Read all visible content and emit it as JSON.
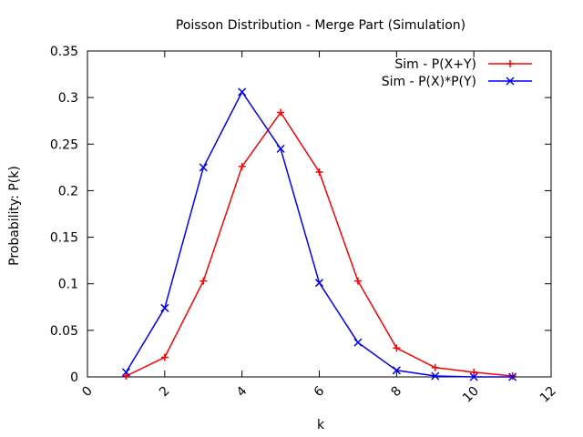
{
  "chart_data": {
    "type": "line",
    "title": "Poisson Distribution - Merge Part (Simulation)",
    "xlabel": "k",
    "ylabel": "Probability: P(k)",
    "xlim": [
      0,
      12
    ],
    "ylim": [
      0,
      0.35
    ],
    "xticks": [
      "0",
      "2",
      "4",
      "6",
      "8",
      "10",
      "12"
    ],
    "yticks": [
      "0",
      "0.05",
      "0.1",
      "0.15",
      "0.2",
      "0.25",
      "0.3",
      "0.35"
    ],
    "grid": false,
    "legend_position": "top-right",
    "series": [
      {
        "name": "Sim - P(X+Y)",
        "color": "#ff0000",
        "marker": "plus",
        "x": [
          1,
          2,
          3,
          4,
          5,
          6,
          7,
          8,
          9,
          10,
          11
        ],
        "y": [
          0.001,
          0.021,
          0.103,
          0.226,
          0.284,
          0.22,
          0.103,
          0.031,
          0.01,
          0.005,
          0.001
        ]
      },
      {
        "name": "Sim - P(X)*P(Y)",
        "color": "#0000ff",
        "marker": "cross",
        "x": [
          1,
          2,
          3,
          4,
          5,
          6,
          7,
          8,
          9,
          10,
          11
        ],
        "y": [
          0.005,
          0.074,
          0.225,
          0.306,
          0.245,
          0.101,
          0.037,
          0.007,
          0.001,
          0.0,
          0.0
        ]
      }
    ]
  }
}
